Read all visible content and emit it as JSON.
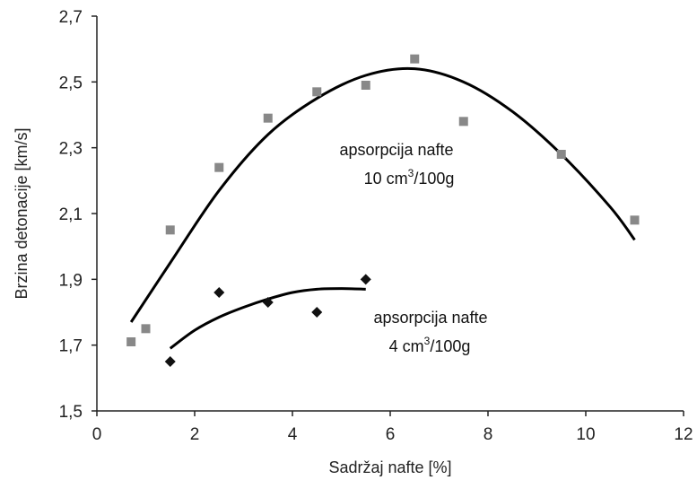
{
  "chart_data": {
    "type": "scatter",
    "title": "",
    "xlabel": "Sadržaj nafte [%]",
    "ylabel": "Brzina detonacije [km/s]",
    "xlim": [
      0,
      12
    ],
    "ylim": [
      1.5,
      2.7
    ],
    "x_ticks": [
      "0",
      "2",
      "4",
      "6",
      "8",
      "10",
      "12"
    ],
    "y_ticks": [
      "1,5",
      "1,7",
      "1,9",
      "2,1",
      "2,3",
      "2,5",
      "2,7"
    ],
    "grid": false,
    "series": [
      {
        "marker": "square",
        "color": "#888888",
        "points": [
          [
            0.7,
            1.71
          ],
          [
            1.0,
            1.75
          ],
          [
            1.5,
            2.05
          ],
          [
            2.5,
            2.24
          ],
          [
            3.5,
            2.39
          ],
          [
            4.5,
            2.47
          ],
          [
            5.5,
            2.49
          ],
          [
            6.5,
            2.57
          ],
          [
            7.5,
            2.38
          ],
          [
            9.5,
            2.28
          ],
          [
            11.0,
            2.08
          ]
        ],
        "trend": {
          "x_range": [
            0.7,
            11.0
          ],
          "points": [
            [
              0.7,
              1.77
            ],
            [
              1.5,
              1.95
            ],
            [
              2.5,
              2.17
            ],
            [
              3.5,
              2.34
            ],
            [
              4.5,
              2.45
            ],
            [
              5.5,
              2.52
            ],
            [
              6.5,
              2.54
            ],
            [
              7.5,
              2.5
            ],
            [
              8.5,
              2.41
            ],
            [
              9.5,
              2.28
            ],
            [
              10.5,
              2.12
            ],
            [
              11.0,
              2.02
            ]
          ]
        }
      },
      {
        "marker": "diamond",
        "color": "#111111",
        "points": [
          [
            1.5,
            1.65
          ],
          [
            2.5,
            1.86
          ],
          [
            3.5,
            1.83
          ],
          [
            4.5,
            1.8
          ],
          [
            5.5,
            1.9
          ]
        ],
        "trend": {
          "x_range": [
            1.5,
            5.5
          ],
          "points": [
            [
              1.5,
              1.69
            ],
            [
              2.0,
              1.745
            ],
            [
              2.5,
              1.785
            ],
            [
              3.0,
              1.815
            ],
            [
              3.5,
              1.84
            ],
            [
              4.0,
              1.86
            ],
            [
              4.5,
              1.87
            ],
            [
              5.0,
              1.872
            ],
            [
              5.5,
              1.87
            ]
          ]
        }
      }
    ],
    "annotations": [
      {
        "line1": "apsorpcija nafte",
        "line2_prefix": "10 cm",
        "line2_sup": "3",
        "line2_suffix": "/100g"
      },
      {
        "line1": "apsorpcija nafte",
        "line2_prefix": "4 cm",
        "line2_sup": "3",
        "line2_suffix": "/100g"
      }
    ]
  }
}
